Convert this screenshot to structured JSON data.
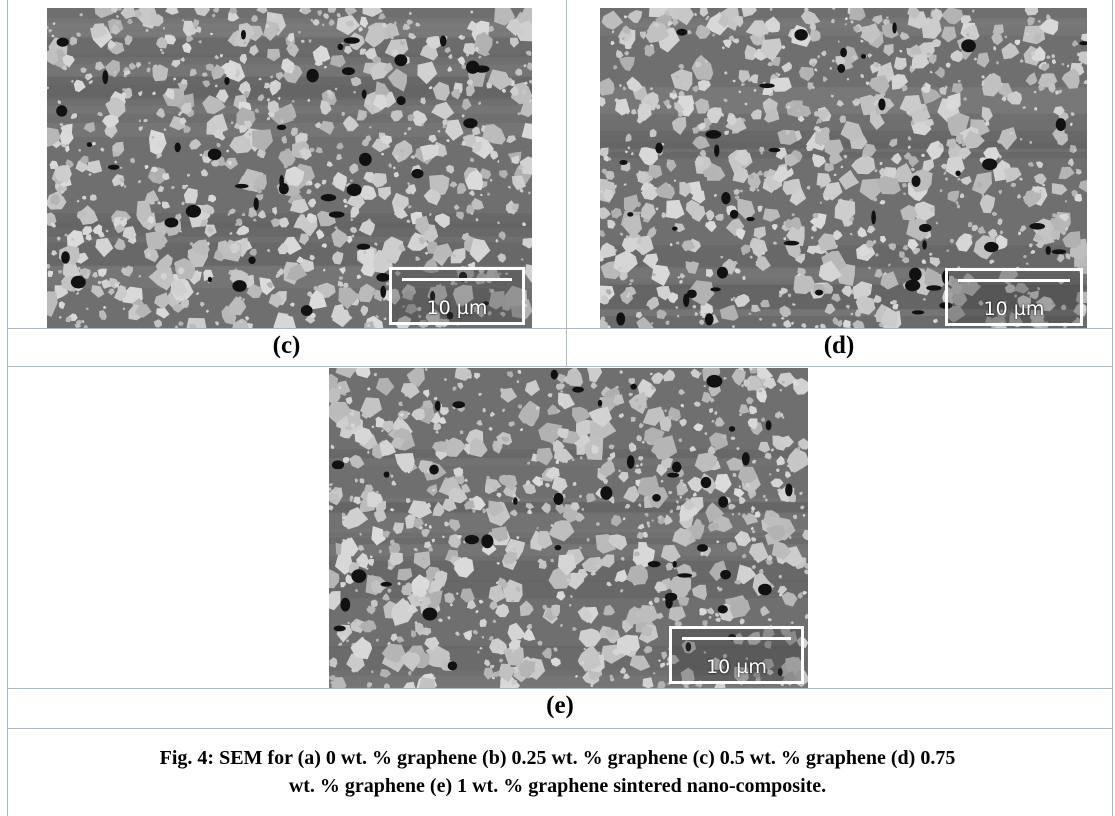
{
  "panels": {
    "c": {
      "label": "(c)",
      "scale_bar": "10 µm"
    },
    "d": {
      "label": "(d)",
      "scale_bar": "10 µm"
    },
    "e": {
      "label": "(e)",
      "scale_bar": "10 µm"
    }
  },
  "caption": {
    "line1": "Fig. 4: SEM for (a) 0 wt. % graphene (b) 0.25 wt. % graphene (c) 0.5 wt. % graphene (d) 0.75",
    "line2": "wt. % graphene (e) 1 wt. % graphene sintered nano-composite."
  }
}
